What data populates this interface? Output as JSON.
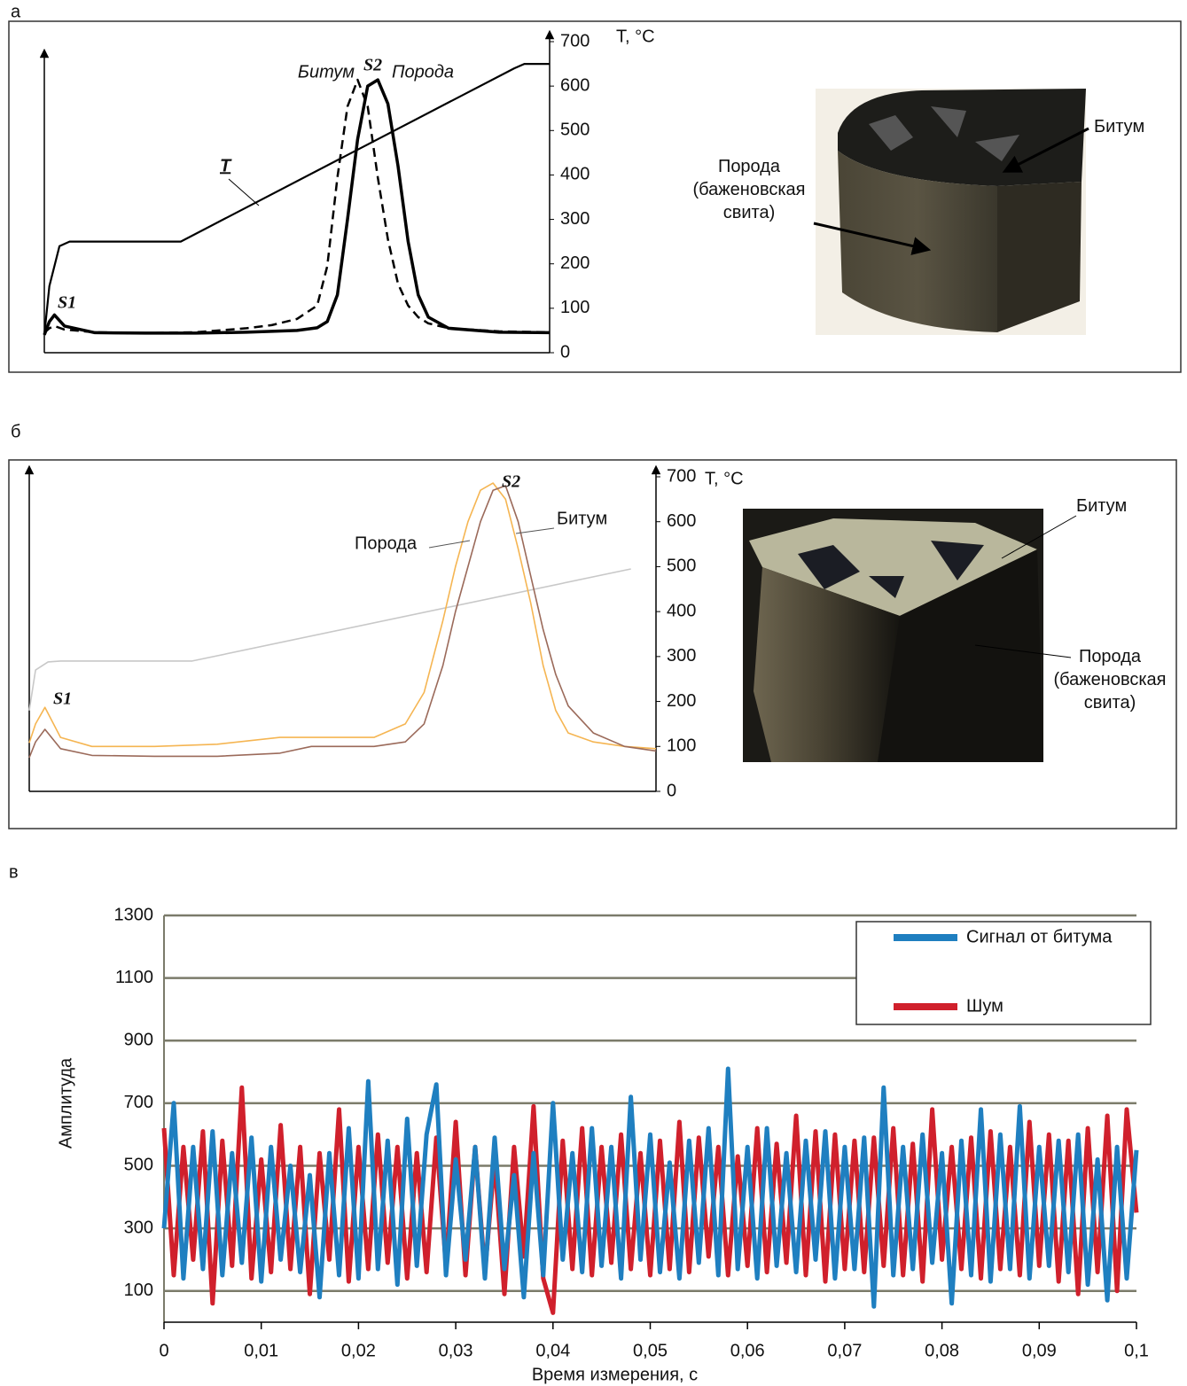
{
  "chart_data": [
    {
      "type": "line",
      "panel_label": "а",
      "y_label": "T, °C",
      "xlim": [
        0,
        100
      ],
      "ylim": [
        0,
        700
      ],
      "yticks": [
        0,
        100,
        200,
        300,
        400,
        500,
        600,
        700
      ],
      "series": [
        {
          "name": "T",
          "color": "#000000",
          "x": [
            0,
            1,
            3,
            5,
            27,
            93,
            95,
            100
          ],
          "values": [
            40,
            150,
            240,
            250,
            250,
            640,
            650,
            650
          ]
        },
        {
          "name": "Битум",
          "color": "#000000",
          "dash": true,
          "x": [
            0,
            1,
            2,
            4,
            10,
            20,
            30,
            40,
            45,
            50,
            54,
            56,
            58,
            60,
            62,
            64,
            66,
            68,
            70,
            72,
            74,
            76,
            80,
            90,
            100
          ],
          "values": [
            45,
            55,
            60,
            52,
            46,
            44,
            46,
            55,
            62,
            76,
            106,
            195,
            394,
            554,
            614,
            554,
            394,
            255,
            155,
            106,
            80,
            66,
            55,
            48,
            46
          ]
        },
        {
          "name": "Порода",
          "color": "#000000",
          "x": [
            0,
            1,
            2,
            4,
            10,
            20,
            30,
            40,
            45,
            50,
            54,
            56,
            58,
            60,
            62,
            64,
            66,
            68,
            70,
            72,
            74,
            76,
            80,
            90,
            100
          ],
          "values": [
            40,
            70,
            85,
            60,
            45,
            44,
            44,
            46,
            48,
            50,
            56,
            70,
            130,
            300,
            480,
            600,
            614,
            560,
            420,
            250,
            130,
            80,
            55,
            46,
            45
          ]
        }
      ],
      "annotations": [
        "S1",
        "S2"
      ],
      "photo_labels": [
        "Битум",
        "Порода (баженовская свита)"
      ]
    },
    {
      "type": "line",
      "panel_label": "б",
      "y_label": "T, °C",
      "xlim": [
        0,
        100
      ],
      "ylim": [
        0,
        700
      ],
      "yticks": [
        0,
        100,
        200,
        300,
        400,
        500,
        600,
        700
      ],
      "series": [
        {
          "color": "#c8c8c8",
          "x": [
            0,
            1,
            3,
            5,
            26,
            96
          ],
          "values": [
            180,
            270,
            288,
            290,
            290,
            495
          ]
        },
        {
          "name": "Порода",
          "color": "#f5b552",
          "x": [
            0,
            1,
            2.5,
            5,
            10,
            20,
            30,
            40,
            45,
            55,
            60,
            63,
            66,
            68,
            70,
            72,
            74,
            76,
            78,
            80,
            82,
            84,
            86,
            90,
            95,
            100
          ],
          "values": [
            108,
            150,
            187,
            120,
            100,
            100,
            105,
            120,
            120,
            120,
            150,
            220,
            380,
            500,
            600,
            670,
            686,
            650,
            540,
            420,
            280,
            180,
            130,
            110,
            100,
            95
          ]
        },
        {
          "name": "Битум",
          "color": "#9b6a5a",
          "x": [
            0,
            1,
            2.5,
            5,
            10,
            20,
            30,
            40,
            45,
            55,
            60,
            63,
            66,
            68,
            70,
            72,
            74,
            76,
            78,
            80,
            82,
            84,
            86,
            90,
            95,
            100
          ],
          "values": [
            75,
            110,
            138,
            95,
            80,
            78,
            78,
            85,
            100,
            100,
            110,
            150,
            280,
            400,
            500,
            600,
            670,
            680,
            600,
            480,
            360,
            260,
            190,
            130,
            100,
            90
          ]
        }
      ],
      "annotations": [
        "S1",
        "S2"
      ],
      "photo_labels": [
        "Битум",
        "Порода (баженовская свита)"
      ]
    },
    {
      "type": "line",
      "panel_label": "в",
      "x_label": "Время измерения, с",
      "y_label": "Амплитуда",
      "grid": true,
      "xlim": [
        0,
        0.1
      ],
      "ylim": [
        0,
        1300
      ],
      "xticks": [
        0,
        {
          "value": 0.01,
          "label": "0,01"
        },
        {
          "value": 0.02,
          "label": "0,02"
        },
        {
          "value": 0.03,
          "label": "0,03"
        },
        {
          "value": 0.04,
          "label": "0,04"
        },
        {
          "value": 0.05,
          "label": "0,05"
        },
        {
          "value": 0.06,
          "label": "0,06"
        },
        {
          "value": 0.07,
          "label": "0,07"
        },
        {
          "value": 0.08,
          "label": "0,08"
        },
        {
          "value": 0.09,
          "label": "0,09"
        },
        {
          "value": 0.1,
          "label": "0,1"
        }
      ],
      "yticks": [
        100,
        300,
        500,
        700,
        900,
        1100,
        1300
      ],
      "x": [
        0,
        0.001,
        0.002,
        0.003,
        0.004,
        0.005,
        0.006,
        0.007,
        0.008,
        0.009,
        0.01,
        0.011,
        0.012,
        0.013,
        0.014,
        0.015,
        0.016,
        0.017,
        0.018,
        0.019,
        0.02,
        0.021,
        0.022,
        0.023,
        0.024,
        0.025,
        0.026,
        0.027,
        0.028,
        0.029,
        0.03,
        0.031,
        0.032,
        0.033,
        0.034,
        0.035,
        0.036,
        0.037,
        0.038,
        0.039,
        0.04,
        0.041,
        0.042,
        0.043,
        0.044,
        0.045,
        0.046,
        0.047,
        0.048,
        0.049,
        0.05,
        0.051,
        0.052,
        0.053,
        0.054,
        0.055,
        0.056,
        0.057,
        0.058,
        0.059,
        0.06,
        0.061,
        0.062,
        0.063,
        0.064,
        0.065,
        0.066,
        0.067,
        0.068,
        0.069,
        0.07,
        0.071,
        0.072,
        0.073,
        0.074,
        0.075,
        0.076,
        0.077,
        0.078,
        0.079,
        0.08,
        0.081,
        0.082,
        0.083,
        0.084,
        0.085,
        0.086,
        0.087,
        0.088,
        0.089,
        0.09,
        0.091,
        0.092,
        0.093,
        0.094,
        0.095,
        0.096,
        0.097,
        0.098,
        0.099,
        0.1
      ],
      "series": [
        {
          "name": "Шум",
          "color": "#d0202c",
          "values": [
            620,
            150,
            560,
            200,
            610,
            60,
            580,
            180,
            750,
            140,
            520,
            160,
            630,
            170,
            560,
            90,
            540,
            200,
            680,
            130,
            560,
            170,
            600,
            190,
            560,
            140,
            540,
            160,
            590,
            180,
            640,
            150,
            560,
            160,
            520,
            90,
            560,
            210,
            690,
            140,
            30,
            580,
            170,
            620,
            150,
            560,
            190,
            600,
            170,
            540,
            150,
            580,
            170,
            640,
            160,
            590,
            210,
            560,
            150,
            530,
            180,
            620,
            160,
            570,
            190,
            660,
            150,
            610,
            130,
            600,
            170,
            580,
            160,
            590,
            180,
            620,
            150,
            570,
            130,
            680,
            200,
            560,
            170,
            590,
            140,
            610,
            170,
            560,
            150,
            640,
            180,
            600,
            130,
            580,
            90,
            620,
            160,
            660,
            100,
            680,
            350
          ]
        },
        {
          "name": "Сигнал от битума",
          "color": "#1f7fc0",
          "values": [
            300,
            700,
            140,
            560,
            170,
            610,
            150,
            540,
            190,
            590,
            130,
            560,
            200,
            500,
            160,
            470,
            80,
            540,
            150,
            620,
            140,
            770,
            170,
            580,
            120,
            650,
            180,
            600,
            760,
            150,
            520,
            200,
            560,
            140,
            590,
            170,
            470,
            80,
            540,
            150,
            700,
            200,
            540,
            160,
            620,
            180,
            560,
            140,
            720,
            200,
            600,
            160,
            510,
            140,
            580,
            190,
            620,
            150,
            810,
            170,
            560,
            140,
            620,
            180,
            540,
            160,
            580,
            200,
            610,
            140,
            560,
            170,
            590,
            50,
            750,
            150,
            560,
            170,
            600,
            190,
            540,
            60,
            580,
            150,
            680,
            130,
            600,
            170,
            690,
            140,
            560,
            180,
            580,
            160,
            600,
            120,
            520,
            70,
            560,
            140,
            550
          ]
        }
      ]
    }
  ]
}
